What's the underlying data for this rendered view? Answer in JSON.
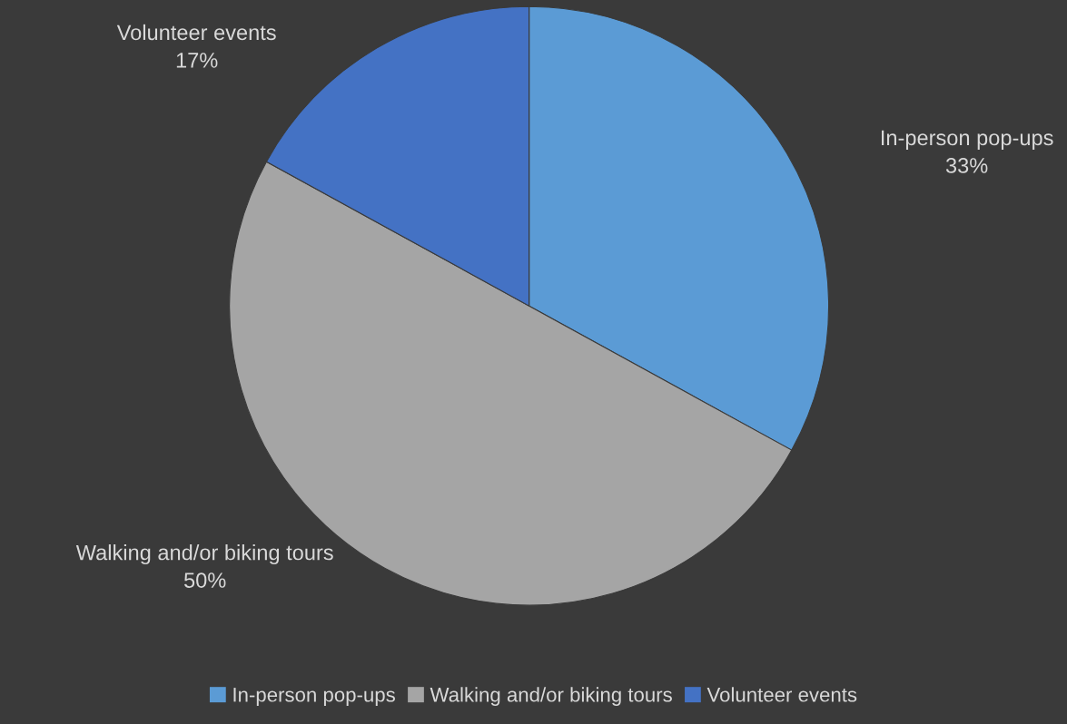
{
  "chart_data": {
    "type": "pie",
    "categories": [
      "In-person pop-ups",
      "Walking and/or biking tours",
      "Volunteer events"
    ],
    "values": [
      33,
      50,
      17
    ],
    "colors": [
      "#5b9bd5",
      "#a5a5a5",
      "#4472c4"
    ],
    "value_labels": [
      "33%",
      "50%",
      "17%"
    ],
    "legend": "bottom"
  }
}
